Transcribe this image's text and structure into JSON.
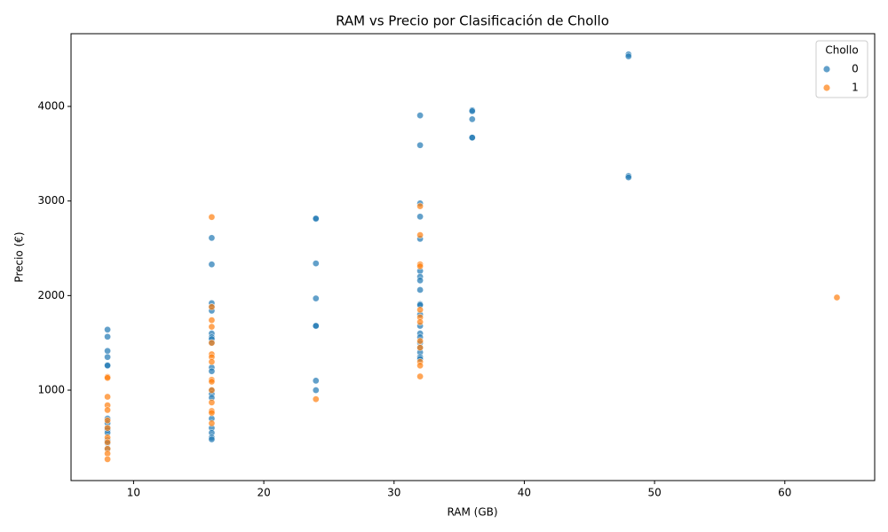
{
  "chart_data": {
    "type": "scatter",
    "title": "RAM vs Precio por Clasificación de Chollo",
    "x_label": "RAM (GB)",
    "y_label": "Precio (€)",
    "xlim": [
      5.2,
      66.9
    ],
    "ylim": [
      44,
      4769
    ],
    "xticks": [
      10,
      20,
      30,
      40,
      50,
      60
    ],
    "yticks": [
      1000,
      2000,
      3000,
      4000
    ],
    "legend_title": "Chollo",
    "legend": "upper right",
    "grid": false,
    "series": [
      {
        "name": "0",
        "color": "#1f77b4",
        "x": [
          8,
          8,
          8,
          8,
          8,
          8,
          8,
          8,
          8,
          8,
          8,
          8,
          8,
          8,
          16,
          16,
          16,
          16,
          16,
          16,
          16,
          16,
          16,
          16,
          16,
          16,
          16,
          16,
          16,
          16,
          16,
          16,
          16,
          24,
          24,
          24,
          24,
          24,
          24,
          24,
          24,
          32,
          32,
          32,
          32,
          32,
          32,
          32,
          32,
          32,
          32,
          32,
          32,
          32,
          32,
          32,
          32,
          32,
          32,
          32,
          32,
          36,
          36,
          36,
          36,
          36,
          48,
          48,
          48,
          48
        ],
        "values": [
          1640,
          1565,
          1415,
          1350,
          1265,
          1260,
          700,
          650,
          600,
          580,
          550,
          470,
          440,
          380,
          2610,
          2330,
          1920,
          1880,
          1840,
          1600,
          1560,
          1540,
          1500,
          1240,
          1200,
          1000,
          960,
          920,
          700,
          600,
          550,
          500,
          480,
          2810,
          2815,
          2340,
          1970,
          1680,
          1680,
          1100,
          1000,
          3905,
          3590,
          2975,
          2835,
          2600,
          2260,
          2200,
          2160,
          2060,
          1910,
          1900,
          1800,
          1680,
          1600,
          1560,
          1500,
          1450,
          1400,
          1350,
          1330,
          3960,
          3950,
          3865,
          3670,
          3670,
          4550,
          4530,
          3265,
          3250
        ]
      },
      {
        "name": "1",
        "color": "#ff7f0e",
        "x": [
          8,
          8,
          8,
          8,
          8,
          8,
          8,
          8,
          8,
          8,
          8,
          8,
          16,
          16,
          16,
          16,
          16,
          16,
          16,
          16,
          16,
          16,
          16,
          16,
          16,
          16,
          16,
          24,
          32,
          32,
          32,
          32,
          32,
          32,
          32,
          32,
          32,
          32,
          32,
          32,
          64
        ],
        "values": [
          1140,
          1130,
          930,
          840,
          790,
          680,
          600,
          500,
          450,
          380,
          330,
          270,
          2830,
          1880,
          1740,
          1670,
          1500,
          1380,
          1350,
          1300,
          1110,
          1090,
          1000,
          870,
          780,
          760,
          650,
          905,
          2945,
          2640,
          2330,
          2310,
          1850,
          1770,
          1720,
          1520,
          1450,
          1300,
          1260,
          1145,
          1980
        ]
      }
    ]
  }
}
